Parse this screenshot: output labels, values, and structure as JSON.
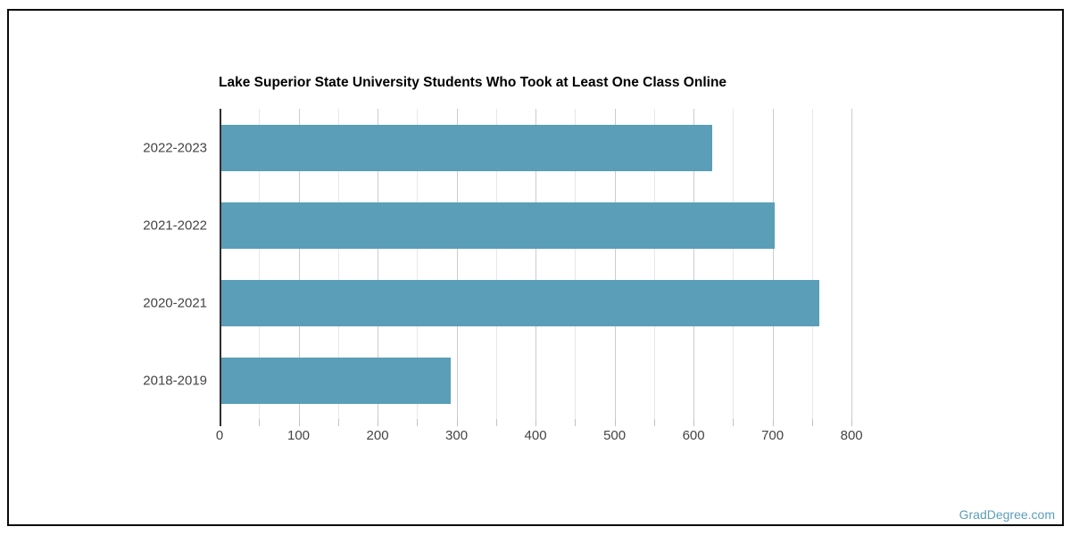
{
  "header": {
    "title": "Lake Superior State University Students Who Took at Least One Class Online"
  },
  "watermark": {
    "label": "GradDegree.com"
  },
  "chart_data": {
    "type": "bar",
    "orientation": "horizontal",
    "title": "Lake Superior State University Students Who Took at Least One Class Online",
    "categories": [
      "2022-2023",
      "2021-2022",
      "2020-2021",
      "2018-2019"
    ],
    "values": [
      624,
      703,
      759,
      293
    ],
    "xlabel": "",
    "ylabel": "",
    "xlim": [
      0,
      836
    ],
    "x_ticks": [
      0,
      100,
      200,
      300,
      400,
      500,
      600,
      700,
      800
    ],
    "x_minor_tick_step": 50,
    "grid": true,
    "legend": "none",
    "colors": {
      "bar": "#5b9eb8",
      "grid_major": "#cccccc",
      "grid_minor": "#e7e7e7",
      "axis_line": "#2f2f2f",
      "tick": "#c2c2c2",
      "axis_label": "#444444",
      "title": "#000000",
      "watermark": "#5b9eb8",
      "frame_border": "#0a0a0a"
    }
  }
}
